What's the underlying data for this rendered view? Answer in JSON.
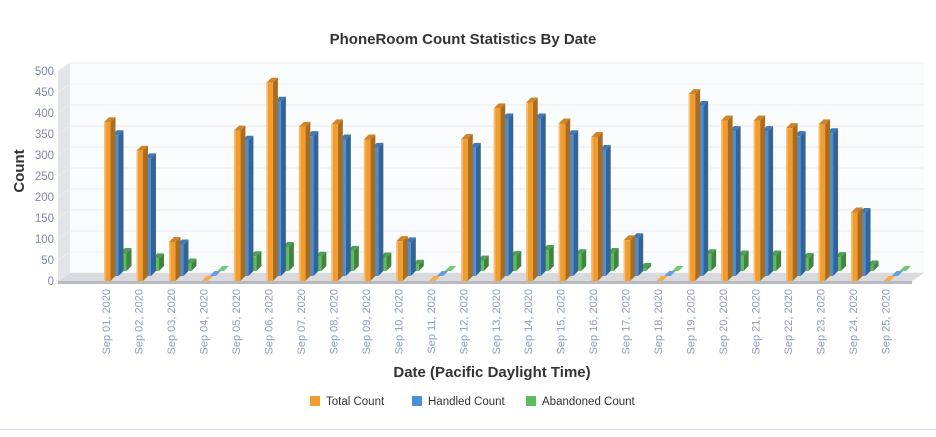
{
  "chart_data": {
    "type": "bar",
    "title": "PhoneRoom Count Statistics By Date",
    "xlabel": "Date (Pacific Daylight Time)",
    "ylabel": "Count",
    "ylim": [
      0,
      500
    ],
    "yticks": [
      "0",
      "50",
      "100",
      "150",
      "200",
      "250",
      "300",
      "350",
      "400",
      "450",
      "500"
    ],
    "grid": true,
    "legend_position": "bottom-center",
    "categories": [
      "Sep 01, 2020",
      "Sep 02, 2020",
      "Sep 03, 2020",
      "Sep 04, 2020",
      "Sep 05, 2020",
      "Sep 06, 2020",
      "Sep 07, 2020",
      "Sep 08, 2020",
      "Sep 09, 2020",
      "Sep 10, 2020",
      "Sep 11, 2020",
      "Sep 12, 2020",
      "Sep 13, 2020",
      "Sep 14, 2020",
      "Sep 15, 2020",
      "Sep 16, 2020",
      "Sep 17, 2020",
      "Sep 18, 2020",
      "Sep 19, 2020",
      "Sep 20, 2020",
      "Sep 21, 2020",
      "Sep 22, 2020",
      "Sep 23, 2020",
      "Sep 24, 2020",
      "Sep 25, 2020"
    ],
    "series": [
      {
        "name": "Total Count",
        "color": "#f39c2e",
        "values": [
          378,
          310,
          93,
          0,
          358,
          472,
          367,
          373,
          337,
          95,
          0,
          338,
          411,
          425,
          375,
          343,
          97,
          0,
          445,
          382,
          382,
          364,
          373,
          163,
          0
        ]
      },
      {
        "name": "Handled Count",
        "color": "#4a8fd6",
        "values": [
          335,
          280,
          75,
          0,
          322,
          415,
          333,
          325,
          305,
          80,
          0,
          305,
          375,
          375,
          335,
          300,
          90,
          0,
          405,
          345,
          345,
          333,
          340,
          150,
          0
        ]
      },
      {
        "name": "Abandoned Count",
        "color": "#5cbd5c",
        "values": [
          43,
          30,
          18,
          0,
          35,
          57,
          34,
          48,
          32,
          15,
          0,
          25,
          36,
          50,
          40,
          43,
          7,
          0,
          40,
          37,
          37,
          31,
          33,
          13,
          0
        ]
      }
    ]
  }
}
